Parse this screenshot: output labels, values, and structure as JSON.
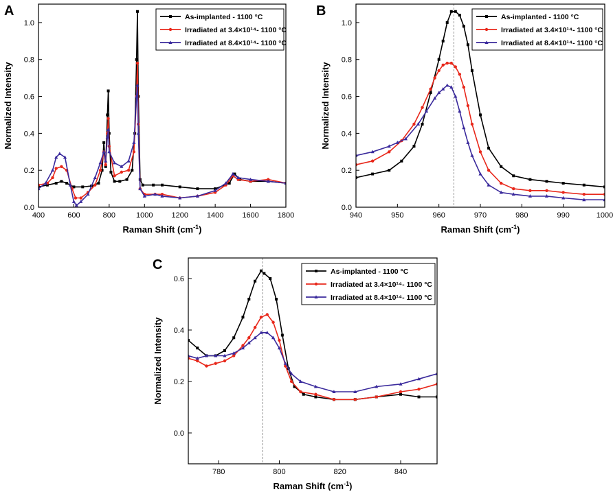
{
  "chart_data": [
    {
      "panel": "A",
      "type": "line",
      "xlabel": "Raman Shift (cm",
      "xlabel_sup": "-1",
      "xlabel_tail": ")",
      "ylabel": "Normalized Intensity",
      "xlim": [
        400,
        1800
      ],
      "ylim": [
        0.0,
        1.1
      ],
      "xticks": [
        "400",
        "600",
        "800",
        "1000",
        "1200",
        "1400",
        "1600",
        "1800"
      ],
      "yticks": [
        "0.0",
        "0.2",
        "0.4",
        "0.6",
        "0.8",
        "1.0"
      ],
      "legend_position": "top-right",
      "series": [
        {
          "name": "As-implanted - 1100 °C",
          "color": "#000000",
          "marker": "square",
          "x": [
            400,
            450,
            500,
            530,
            560,
            600,
            650,
            700,
            740,
            760,
            770,
            780,
            790,
            795,
            800,
            810,
            830,
            860,
            900,
            930,
            945,
            955,
            960,
            965,
            975,
            990,
            1050,
            1100,
            1200,
            1300,
            1400,
            1480,
            1510,
            1540,
            1600,
            1700,
            1800
          ],
          "y": [
            0.11,
            0.12,
            0.13,
            0.14,
            0.13,
            0.11,
            0.11,
            0.115,
            0.13,
            0.2,
            0.35,
            0.22,
            0.5,
            0.63,
            0.4,
            0.19,
            0.14,
            0.14,
            0.15,
            0.2,
            0.4,
            0.8,
            1.06,
            0.6,
            0.15,
            0.12,
            0.12,
            0.12,
            0.11,
            0.1,
            0.1,
            0.13,
            0.18,
            0.15,
            0.14,
            0.14,
            0.13
          ]
        },
        {
          "name": "Irradiated at 3.4×10¹⁴- 1100 °C",
          "color": "#e8281b",
          "marker": "circle",
          "x": [
            400,
            450,
            480,
            500,
            530,
            560,
            590,
            610,
            640,
            680,
            720,
            750,
            770,
            780,
            790,
            795,
            800,
            830,
            870,
            910,
            940,
            955,
            960,
            965,
            975,
            1000,
            1060,
            1100,
            1200,
            1300,
            1400,
            1460,
            1500,
            1530,
            1600,
            1700,
            1800
          ],
          "y": [
            0.12,
            0.13,
            0.16,
            0.21,
            0.22,
            0.2,
            0.1,
            0.05,
            0.05,
            0.08,
            0.12,
            0.2,
            0.3,
            0.23,
            0.4,
            0.48,
            0.33,
            0.17,
            0.19,
            0.2,
            0.3,
            0.6,
            0.78,
            0.45,
            0.1,
            0.07,
            0.07,
            0.07,
            0.05,
            0.06,
            0.08,
            0.12,
            0.17,
            0.15,
            0.14,
            0.15,
            0.13
          ]
        },
        {
          "name": "Irradiated at 8.4×10¹⁴- 1100 °C",
          "color": "#3a2a9c",
          "marker": "triangle",
          "x": [
            400,
            440,
            480,
            500,
            520,
            550,
            580,
            600,
            615,
            640,
            680,
            720,
            750,
            770,
            780,
            790,
            795,
            800,
            830,
            870,
            910,
            940,
            955,
            960,
            965,
            975,
            1000,
            1060,
            1100,
            1200,
            1300,
            1400,
            1460,
            1500,
            1530,
            1600,
            1700,
            1800
          ],
          "y": [
            0.1,
            0.13,
            0.2,
            0.27,
            0.29,
            0.27,
            0.12,
            0.03,
            0.01,
            0.03,
            0.07,
            0.16,
            0.24,
            0.3,
            0.25,
            0.38,
            0.42,
            0.3,
            0.24,
            0.22,
            0.25,
            0.35,
            0.6,
            0.66,
            0.4,
            0.1,
            0.06,
            0.07,
            0.06,
            0.05,
            0.06,
            0.09,
            0.13,
            0.18,
            0.16,
            0.15,
            0.14,
            0.13
          ]
        }
      ]
    },
    {
      "panel": "B",
      "type": "line",
      "xlabel": "Raman Shift (cm",
      "xlabel_sup": "-1",
      "xlabel_tail": ")",
      "ylabel": "Normalized Intensity",
      "xlim": [
        940,
        1000
      ],
      "ylim": [
        0.0,
        1.1
      ],
      "xticks": [
        "940",
        "950",
        "960",
        "970",
        "980",
        "990",
        "1000"
      ],
      "yticks": [
        "0.0",
        "0.2",
        "0.4",
        "0.6",
        "0.8",
        "1.0"
      ],
      "reference_line_x": 963.6,
      "legend_position": "top-right",
      "series": [
        {
          "name": "As-implanted - 1100 °C",
          "color": "#000000",
          "marker": "square",
          "x": [
            940,
            944,
            948,
            951,
            954,
            956,
            958,
            960,
            961,
            962,
            963,
            964,
            965,
            966,
            967,
            968,
            970,
            972,
            975,
            978,
            982,
            986,
            990,
            995,
            1000
          ],
          "y": [
            0.16,
            0.18,
            0.2,
            0.25,
            0.33,
            0.45,
            0.62,
            0.8,
            0.9,
            1.0,
            1.06,
            1.06,
            1.04,
            0.98,
            0.88,
            0.74,
            0.5,
            0.32,
            0.22,
            0.17,
            0.15,
            0.14,
            0.13,
            0.12,
            0.11
          ]
        },
        {
          "name": "Irradiated at 3.4×10¹⁴- 1100 °C",
          "color": "#e8281b",
          "marker": "circle",
          "x": [
            940,
            944,
            948,
            951,
            954,
            956,
            958,
            959,
            960,
            961,
            962,
            963,
            964,
            965,
            966,
            967,
            968,
            970,
            972,
            975,
            978,
            982,
            986,
            990,
            995,
            1000
          ],
          "y": [
            0.23,
            0.25,
            0.3,
            0.36,
            0.45,
            0.54,
            0.64,
            0.7,
            0.74,
            0.77,
            0.78,
            0.78,
            0.76,
            0.72,
            0.65,
            0.55,
            0.45,
            0.3,
            0.2,
            0.13,
            0.1,
            0.09,
            0.09,
            0.08,
            0.07,
            0.07
          ]
        },
        {
          "name": "Irradiated at 8.4×10¹⁴- 1100 °C",
          "color": "#3a2a9c",
          "marker": "triangle",
          "x": [
            940,
            944,
            948,
            950,
            952,
            955,
            957,
            959,
            960,
            961,
            962,
            963,
            964,
            965,
            966,
            967,
            968,
            970,
            972,
            975,
            978,
            982,
            986,
            990,
            995,
            1000
          ],
          "y": [
            0.28,
            0.3,
            0.33,
            0.35,
            0.37,
            0.45,
            0.52,
            0.59,
            0.62,
            0.64,
            0.66,
            0.65,
            0.6,
            0.52,
            0.43,
            0.35,
            0.28,
            0.18,
            0.12,
            0.08,
            0.07,
            0.06,
            0.06,
            0.05,
            0.04,
            0.04
          ]
        }
      ]
    },
    {
      "panel": "C",
      "type": "line",
      "xlabel": "Raman Shift (cm",
      "xlabel_sup": "-1",
      "xlabel_tail": ")",
      "ylabel": "Normalized Intensity",
      "xlim": [
        770,
        852
      ],
      "ylim": [
        -0.12,
        0.68
      ],
      "xticks": [
        "780",
        "800",
        "820",
        "840"
      ],
      "yticks": [
        "0.0",
        "0.2",
        "0.4",
        "0.6"
      ],
      "reference_line_x": 794.5,
      "legend_position": "top-right",
      "series": [
        {
          "name": "As-implanted - 1100 °C",
          "color": "#000000",
          "marker": "square",
          "x": [
            770,
            773,
            776,
            779,
            782,
            785,
            788,
            790,
            792,
            794,
            795,
            797,
            799,
            801,
            803,
            805,
            808,
            812,
            818,
            825,
            832,
            840,
            846,
            852
          ],
          "y": [
            0.36,
            0.33,
            0.3,
            0.3,
            0.32,
            0.37,
            0.45,
            0.52,
            0.59,
            0.63,
            0.62,
            0.6,
            0.52,
            0.38,
            0.25,
            0.18,
            0.15,
            0.14,
            0.13,
            0.13,
            0.14,
            0.15,
            0.14,
            0.14
          ]
        },
        {
          "name": "Irradiated at 3.4×10¹⁴- 1100 °C",
          "color": "#e8281b",
          "marker": "circle",
          "x": [
            770,
            773,
            776,
            779,
            782,
            785,
            788,
            790,
            792,
            794,
            796,
            798,
            800,
            802,
            804,
            807,
            812,
            818,
            825,
            832,
            840,
            846,
            852
          ],
          "y": [
            0.29,
            0.28,
            0.26,
            0.27,
            0.28,
            0.3,
            0.34,
            0.37,
            0.41,
            0.45,
            0.46,
            0.43,
            0.36,
            0.26,
            0.2,
            0.16,
            0.15,
            0.13,
            0.13,
            0.14,
            0.16,
            0.17,
            0.19
          ]
        },
        {
          "name": "Irradiated at 8.4×10¹⁴- 1100 °C",
          "color": "#3a2a9c",
          "marker": "triangle",
          "x": [
            770,
            773,
            776,
            779,
            782,
            785,
            788,
            790,
            792,
            794,
            796,
            798,
            800,
            802,
            804,
            807,
            812,
            818,
            825,
            832,
            840,
            846,
            852
          ],
          "y": [
            0.3,
            0.29,
            0.3,
            0.3,
            0.3,
            0.31,
            0.33,
            0.35,
            0.37,
            0.39,
            0.39,
            0.37,
            0.33,
            0.27,
            0.23,
            0.2,
            0.18,
            0.16,
            0.16,
            0.18,
            0.19,
            0.21,
            0.23
          ]
        }
      ]
    }
  ]
}
